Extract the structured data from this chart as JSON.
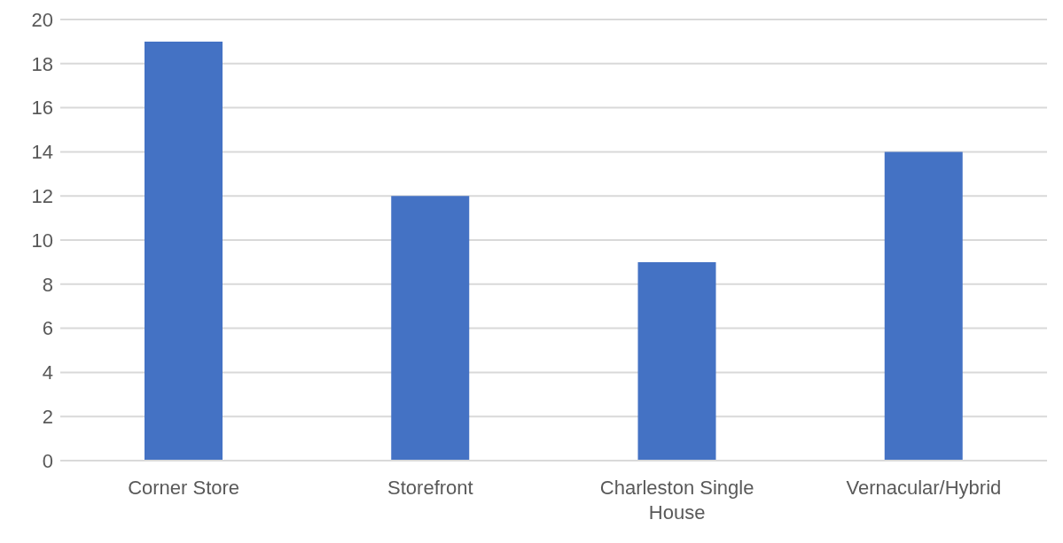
{
  "chart_data": {
    "type": "bar",
    "categories": [
      "Corner Store",
      "Storefront",
      "Charleston Single House",
      "Vernacular/Hybrid"
    ],
    "values": [
      19,
      12,
      9,
      14
    ],
    "color": "#4472c4",
    "ylim": [
      0,
      20
    ],
    "yticks": [
      0,
      2,
      4,
      6,
      8,
      10,
      12,
      14,
      16,
      18,
      20
    ],
    "grid": "y"
  }
}
